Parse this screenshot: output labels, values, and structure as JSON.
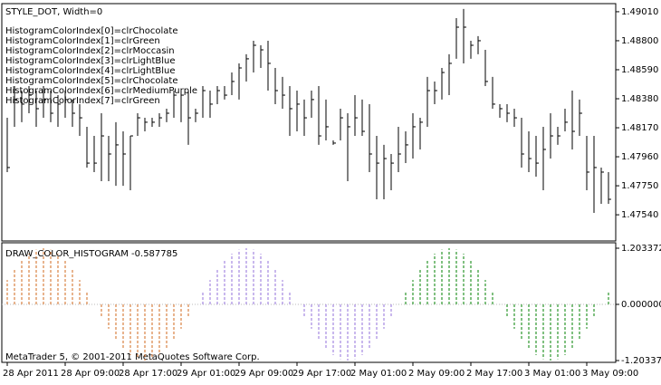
{
  "chart_data": [
    {
      "type": "hlc",
      "title": "STYLE_DOT,  Width=0",
      "annotations": [
        "HistogramColorIndex[0]=clrChocolate",
        "HistogramColorIndex[1]=clrGreen",
        "HistogramColorIndex[2]=clrMoccasin",
        "HistogramColorIndex[3]=clrLightBlue",
        "HistogramColorIndex[4]=clrLightBlue",
        "HistogramColorIndex[5]=clrChocolate",
        "HistogramColorIndex[6]=clrMediumPurple",
        "HistogramColorIndex[7]=clrGreen"
      ],
      "color": "#000000",
      "ylim": [
        1.47357,
        1.49062
      ],
      "yticks": [
        {
          "value": 1.4901,
          "label": "1.49010"
        },
        {
          "value": 1.488,
          "label": "1.48800"
        },
        {
          "value": 1.4859,
          "label": "1.48590"
        },
        {
          "value": 1.4838,
          "label": "1.48380"
        },
        {
          "value": 1.4817,
          "label": "1.48170"
        },
        {
          "value": 1.4796,
          "label": "1.47960"
        },
        {
          "value": 1.4775,
          "label": "1.47750"
        },
        {
          "value": 1.4754,
          "label": "1.47540"
        }
      ],
      "series": [
        {
          "name": "High",
          "values": [
            1.48242,
            1.48472,
            1.48439,
            1.48472,
            1.48439,
            1.48472,
            1.48439,
            1.48406,
            1.48439,
            1.48374,
            1.48341,
            1.48177,
            1.48111,
            1.48275,
            1.48111,
            1.4821,
            1.48144,
            1.48111,
            1.48275,
            1.48242,
            1.48242,
            1.48275,
            1.48308,
            1.48439,
            1.48439,
            1.48439,
            1.48308,
            1.48472,
            1.48439,
            1.48472,
            1.48472,
            1.4857,
            1.48636,
            1.48702,
            1.488,
            1.48767,
            1.488,
            1.48603,
            1.48538,
            1.48472,
            1.48439,
            1.48374,
            1.48439,
            1.48472,
            1.48374,
            1.48078,
            1.48308,
            1.48275,
            1.48406,
            1.48374,
            1.48341,
            1.48111,
            1.48046,
            1.4798,
            1.48177,
            1.48144,
            1.48275,
            1.48242,
            1.48538,
            1.48505,
            1.48603,
            1.48702,
            1.48964,
            1.4903,
            1.488,
            1.48833,
            1.48734,
            1.48538,
            1.48341,
            1.48341,
            1.48308,
            1.48242,
            1.48144,
            1.48111,
            1.48177,
            1.48275,
            1.48177,
            1.48308,
            1.48439,
            1.48374,
            1.48111,
            1.48111,
            1.47882,
            1.47849
          ]
        },
        {
          "name": "Low",
          "values": [
            1.47849,
            1.48177,
            1.4821,
            1.48275,
            1.48177,
            1.48242,
            1.4821,
            1.48177,
            1.48242,
            1.48177,
            1.48111,
            1.47882,
            1.47849,
            1.47783,
            1.47783,
            1.4775,
            1.4775,
            1.47718,
            1.48111,
            1.48144,
            1.48177,
            1.48177,
            1.4821,
            1.48242,
            1.4821,
            1.48046,
            1.4821,
            1.48242,
            1.48242,
            1.48341,
            1.48374,
            1.48406,
            1.48374,
            1.48505,
            1.4857,
            1.48603,
            1.48439,
            1.48341,
            1.48308,
            1.48111,
            1.48144,
            1.48111,
            1.48242,
            1.48046,
            1.48078,
            1.48046,
            1.48078,
            1.47783,
            1.48111,
            1.48111,
            1.47849,
            1.47652,
            1.47652,
            1.47718,
            1.47849,
            1.47914,
            1.47947,
            1.48013,
            1.48177,
            1.48341,
            1.48374,
            1.48406,
            1.48669,
            1.48636,
            1.48669,
            1.48702,
            1.48472,
            1.48308,
            1.48242,
            1.4821,
            1.48177,
            1.47882,
            1.47849,
            1.47816,
            1.47718,
            1.47947,
            1.48046,
            1.48144,
            1.48013,
            1.48111,
            1.47718,
            1.47554,
            1.47619,
            1.47619
          ]
        },
        {
          "name": "Close",
          "values": [
            1.47882,
            1.48374,
            1.48341,
            1.48406,
            1.48308,
            1.48374,
            1.48275,
            1.48341,
            1.48374,
            1.48275,
            1.48242,
            1.47914,
            1.47914,
            1.48111,
            1.4798,
            1.48046,
            1.4798,
            1.48111,
            1.48242,
            1.4821,
            1.4821,
            1.48242,
            1.48275,
            1.48406,
            1.48406,
            1.48242,
            1.48275,
            1.48439,
            1.48341,
            1.48439,
            1.48406,
            1.48505,
            1.48603,
            1.48669,
            1.48767,
            1.48734,
            1.48636,
            1.48439,
            1.48406,
            1.48308,
            1.48341,
            1.48242,
            1.48374,
            1.48111,
            1.48177,
            1.48059,
            1.48242,
            1.48177,
            1.48242,
            1.48144,
            1.4798,
            1.47914,
            1.47947,
            1.47914,
            1.4798,
            1.48046,
            1.48177,
            1.4821,
            1.48439,
            1.48439,
            1.4857,
            1.48636,
            1.48898,
            1.48898,
            1.48767,
            1.488,
            1.48505,
            1.48341,
            1.48308,
            1.48275,
            1.48242,
            1.4798,
            1.47947,
            1.47914,
            1.48013,
            1.48111,
            1.48111,
            1.4821,
            1.48144,
            1.48275,
            1.47849,
            1.47882,
            1.47849,
            1.47652
          ]
        }
      ]
    },
    {
      "type": "histogram",
      "title": "DRAW_COLOR_HISTOGRAM -0.587785",
      "footer": "MetaTrader 5, © 2001-2011 MetaQuotes Software Corp.",
      "ylim": [
        -1.203372,
        1.203372
      ],
      "yticks": [
        {
          "value": 1.203372,
          "label": "1.203372"
        },
        {
          "value": 0,
          "label": "0.000000"
        },
        {
          "value": -1.203372,
          "label": "-1.203372"
        }
      ],
      "categories": [
        "28 Apr 2011",
        null,
        null,
        null,
        null,
        null,
        null,
        null,
        "28 Apr 09:00",
        null,
        null,
        null,
        null,
        null,
        null,
        null,
        "28 Apr 17:00",
        null,
        null,
        null,
        null,
        null,
        null,
        null,
        "29 Apr 01:00",
        null,
        null,
        null,
        null,
        null,
        null,
        null,
        "29 Apr 09:00",
        null,
        null,
        null,
        null,
        null,
        null,
        null,
        "29 Apr 17:00",
        null,
        null,
        null,
        null,
        null,
        null,
        null,
        "2 May 01:00",
        null,
        null,
        null,
        null,
        null,
        null,
        null,
        "2 May 09:00",
        null,
        null,
        null,
        null,
        null,
        null,
        null,
        "2 May 17:00",
        null,
        null,
        null,
        null,
        null,
        null,
        null,
        "3 May 01:00",
        null,
        null,
        null,
        null,
        null,
        null,
        null,
        "3 May 09:00",
        null,
        null,
        null
      ],
      "values": [
        0.522,
        0.75,
        0.941,
        1.084,
        1.173,
        1.203,
        1.173,
        1.084,
        0.941,
        0.75,
        0.522,
        0.268,
        0,
        -0.268,
        -0.522,
        -0.75,
        -0.941,
        -1.084,
        -1.173,
        -1.203,
        -1.173,
        -1.084,
        -0.941,
        -0.75,
        -0.522,
        -0.268,
        0,
        0.268,
        0.522,
        0.75,
        0.941,
        1.084,
        1.173,
        1.203,
        1.173,
        1.084,
        0.941,
        0.75,
        0.522,
        0.268,
        0,
        -0.268,
        -0.522,
        -0.75,
        -0.941,
        -1.084,
        -1.173,
        -1.203,
        -1.173,
        -1.084,
        -0.941,
        -0.75,
        -0.522,
        -0.268,
        0,
        0.268,
        0.522,
        0.75,
        0.941,
        1.084,
        1.173,
        1.203,
        1.173,
        1.084,
        0.941,
        0.75,
        0.522,
        0.268,
        0,
        -0.268,
        -0.522,
        -0.75,
        -0.941,
        -1.084,
        -1.173,
        -1.203,
        -1.173,
        -1.084,
        -0.941,
        -0.75,
        -0.522,
        -0.268,
        0,
        0.268
      ],
      "bar_colors": [
        "#d2691e",
        "#d2691e",
        "#d2691e",
        "#d2691e",
        "#d2691e",
        "#d2691e",
        "#d2691e",
        "#d2691e",
        "#d2691e",
        "#d2691e",
        "#d2691e",
        "#d2691e",
        "#d2691e",
        "#d2691e",
        "#d2691e",
        "#d2691e",
        "#d2691e",
        "#d2691e",
        "#d2691e",
        "#d2691e",
        "#d2691e",
        "#d2691e",
        "#d2691e",
        "#d2691e",
        "#d2691e",
        "#d2691e",
        "#9370db",
        "#9370db",
        "#9370db",
        "#9370db",
        "#9370db",
        "#9370db",
        "#9370db",
        "#9370db",
        "#9370db",
        "#9370db",
        "#9370db",
        "#9370db",
        "#9370db",
        "#9370db",
        "#9370db",
        "#9370db",
        "#9370db",
        "#9370db",
        "#9370db",
        "#9370db",
        "#9370db",
        "#9370db",
        "#9370db",
        "#9370db",
        "#9370db",
        "#9370db",
        "#9370db",
        "#9370db",
        "#008000",
        "#008000",
        "#008000",
        "#008000",
        "#008000",
        "#008000",
        "#008000",
        "#008000",
        "#008000",
        "#008000",
        "#008000",
        "#008000",
        "#008000",
        "#008000",
        "#008000",
        "#008000",
        "#008000",
        "#008000",
        "#008000",
        "#008000",
        "#008000",
        "#008000",
        "#008000",
        "#008000",
        "#008000",
        "#008000",
        "#008000",
        "#008000",
        "#008000",
        "#008000"
      ]
    }
  ]
}
